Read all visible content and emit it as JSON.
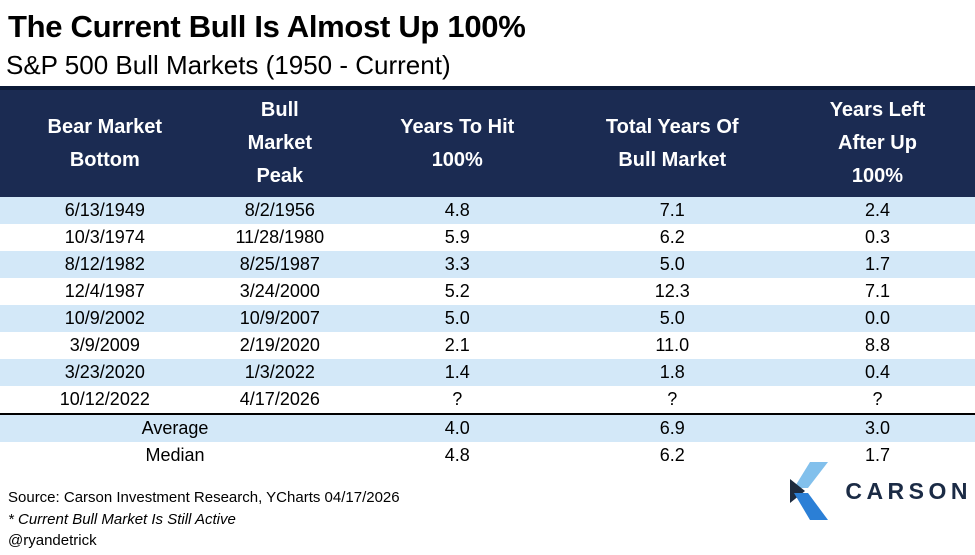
{
  "title": "The Current Bull Is Almost Up 100%",
  "subtitle": "S&P 500 Bull Markets (1950 - Current)",
  "chart_data": {
    "type": "table",
    "columns": [
      "Bear Market\nBottom",
      "Bull\nMarket\nPeak",
      "Years To Hit\n100%",
      "Total Years Of\nBull Market",
      "Years Left\nAfter Up\n100%"
    ],
    "rows": [
      [
        "6/13/1949",
        "8/2/1956",
        "4.8",
        "7.1",
        "2.4"
      ],
      [
        "10/3/1974",
        "11/28/1980",
        "5.9",
        "6.2",
        "0.3"
      ],
      [
        "8/12/1982",
        "8/25/1987",
        "3.3",
        "5.0",
        "1.7"
      ],
      [
        "12/4/1987",
        "3/24/2000",
        "5.2",
        "12.3",
        "7.1"
      ],
      [
        "10/9/2002",
        "10/9/2007",
        "5.0",
        "5.0",
        "0.0"
      ],
      [
        "3/9/2009",
        "2/19/2020",
        "2.1",
        "11.0",
        "8.8"
      ],
      [
        "3/23/2020",
        "1/3/2022",
        "1.4",
        "1.8",
        "0.4"
      ],
      [
        "10/12/2022",
        "4/17/2026",
        "?",
        "?",
        "?"
      ]
    ],
    "summary": [
      {
        "label": "Average",
        "values": [
          "4.0",
          "6.9",
          "3.0"
        ]
      },
      {
        "label": "Median",
        "values": [
          "4.8",
          "6.2",
          "1.7"
        ]
      }
    ]
  },
  "footer": {
    "source": "Source: Carson Investment Research, YCharts 04/17/2026",
    "footnote": "* Current Bull Market Is Still Active",
    "handle": "@ryandetrick"
  },
  "logo": {
    "brand": "CARSON"
  },
  "colors": {
    "header_bg": "#1B2B52",
    "header_border": "#0C1A38",
    "row_alt": "#D3E8F8",
    "separator": "#000000",
    "brand_navy": "#1B2B45",
    "logo_light_blue": "#82C0EC",
    "logo_blue": "#2B7FD6",
    "logo_dark": "#1E2B3E"
  }
}
